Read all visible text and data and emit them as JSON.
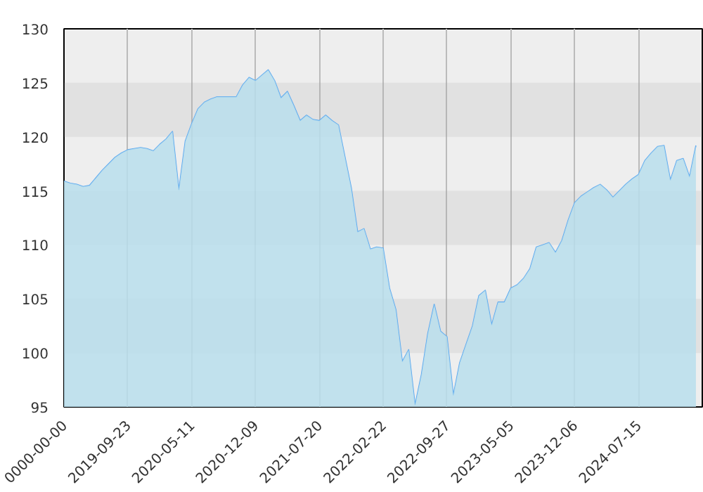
{
  "chart_data": {
    "type": "area",
    "color": "#5aa8f0",
    "grid": true,
    "ylim": [
      95,
      130
    ],
    "yticks": [
      95,
      100,
      105,
      110,
      115,
      120,
      125,
      130
    ],
    "categories": [
      "0000-00-00",
      null,
      null,
      null,
      null,
      null,
      null,
      null,
      null,
      null,
      "2019-09-23",
      null,
      null,
      null,
      null,
      null,
      null,
      null,
      null,
      null,
      "2020-05-11",
      null,
      null,
      null,
      null,
      null,
      null,
      null,
      null,
      null,
      "2020-12-09",
      null,
      null,
      null,
      null,
      null,
      null,
      null,
      null,
      null,
      "2021-07-20",
      null,
      null,
      null,
      null,
      null,
      null,
      null,
      null,
      null,
      "2022-02-22",
      null,
      null,
      null,
      null,
      null,
      null,
      null,
      null,
      null,
      "2022-09-27",
      null,
      null,
      null,
      null,
      null,
      null,
      null,
      null,
      null,
      "2023-05-05",
      null,
      null,
      null,
      null,
      null,
      null,
      null,
      null,
      null,
      "2023-12-06",
      null,
      null,
      null,
      null,
      null,
      null,
      null,
      null,
      null,
      "2024-07-15",
      null,
      null,
      null,
      null,
      null,
      null,
      null,
      null,
      null
    ],
    "values": [
      115.9,
      115.7,
      115.6,
      115.4,
      115.5,
      116.2,
      116.9,
      117.5,
      118.1,
      118.5,
      118.8,
      118.9,
      119.0,
      118.9,
      118.7,
      119.3,
      119.8,
      120.5,
      115.1,
      119.6,
      121.2,
      122.6,
      123.2,
      123.5,
      123.7,
      123.7,
      123.7,
      123.7,
      124.8,
      125.5,
      125.2,
      125.7,
      126.2,
      125.2,
      123.6,
      124.2,
      122.9,
      121.5,
      122.0,
      121.6,
      121.5,
      122.0,
      121.5,
      121.1,
      118.2,
      115.3,
      111.2,
      111.5,
      109.6,
      109.8,
      109.7,
      106.0,
      104.0,
      99.2,
      100.3,
      95.2,
      98.0,
      101.8,
      104.5,
      102.0,
      101.5,
      96.1,
      99.1,
      100.8,
      102.5,
      105.3,
      105.8,
      102.6,
      104.7,
      104.7,
      106.0,
      106.3,
      106.9,
      107.8,
      109.8,
      110.0,
      110.2,
      109.3,
      110.4,
      112.3,
      113.9,
      114.5,
      114.9,
      115.3,
      115.6,
      115.1,
      114.4,
      115.0,
      115.6,
      116.1,
      116.5,
      117.8,
      118.5,
      119.1,
      119.2,
      116.0,
      117.8,
      118.0,
      116.3,
      119.2
    ]
  }
}
